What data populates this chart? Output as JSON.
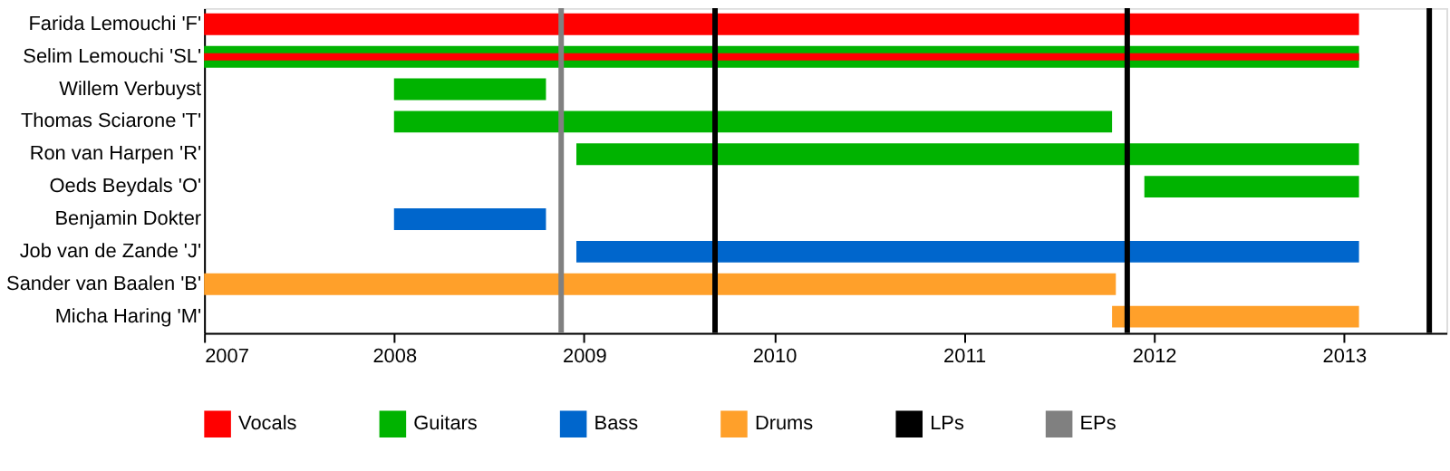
{
  "chart_data": {
    "type": "bar",
    "orientation": "horizontal",
    "legend": "bottom",
    "grid": false,
    "categories": [
      "Farida Lemouchi 'F'",
      "Selim Lemouchi 'SL'",
      "Willem Verbuyst",
      "Thomas Sciarone 'T'",
      "Ron van Harpen 'R'",
      "Oeds Beydals 'O'",
      "Benjamin Dokter",
      "Job van de Zande 'J'",
      "Sander van Baalen 'B'",
      "Micha Haring 'M'"
    ],
    "xlim": [
      2007,
      2013.54
    ],
    "xticks": [
      2007,
      2008,
      2009,
      2010,
      2011,
      2012,
      2013
    ],
    "series": [
      {
        "name": "Vocals",
        "color": "#ff0000",
        "base": [
          2007,
          2007,
          null,
          null,
          null,
          null,
          null,
          null,
          null,
          null
        ],
        "values": [
          6.08,
          6.08,
          null,
          null,
          null,
          null,
          null,
          null,
          null,
          null
        ]
      },
      {
        "name": "Guitars",
        "color": "#00b300",
        "base": [
          null,
          2007,
          2008,
          2008,
          2008.96,
          2011.95,
          null,
          null,
          null,
          null
        ],
        "values": [
          null,
          6.08,
          0.8,
          3.78,
          4.12,
          1.13,
          null,
          null,
          null,
          null
        ]
      },
      {
        "name": "Bass",
        "color": "#0066cc",
        "base": [
          null,
          null,
          null,
          null,
          null,
          null,
          2008,
          2008.96,
          null,
          null
        ],
        "values": [
          null,
          null,
          null,
          null,
          null,
          null,
          0.8,
          4.12,
          null,
          null
        ]
      },
      {
        "name": "Drums",
        "color": "#ffa02a",
        "base": [
          null,
          null,
          null,
          null,
          null,
          null,
          null,
          null,
          2007,
          2011.78
        ],
        "values": [
          null,
          null,
          null,
          null,
          null,
          null,
          null,
          null,
          4.8,
          1.3
        ]
      }
    ],
    "ref_lines": [
      {
        "axis": "x",
        "value": 2009.69,
        "label": "LPs",
        "color": "#000000"
      },
      {
        "axis": "x",
        "value": 2011.86,
        "color": "#000000"
      },
      {
        "axis": "x",
        "value": 2013.45,
        "color": "#000000"
      },
      {
        "axis": "x",
        "value": 2008.88,
        "label": "EPs",
        "color": "#808080"
      }
    ]
  }
}
